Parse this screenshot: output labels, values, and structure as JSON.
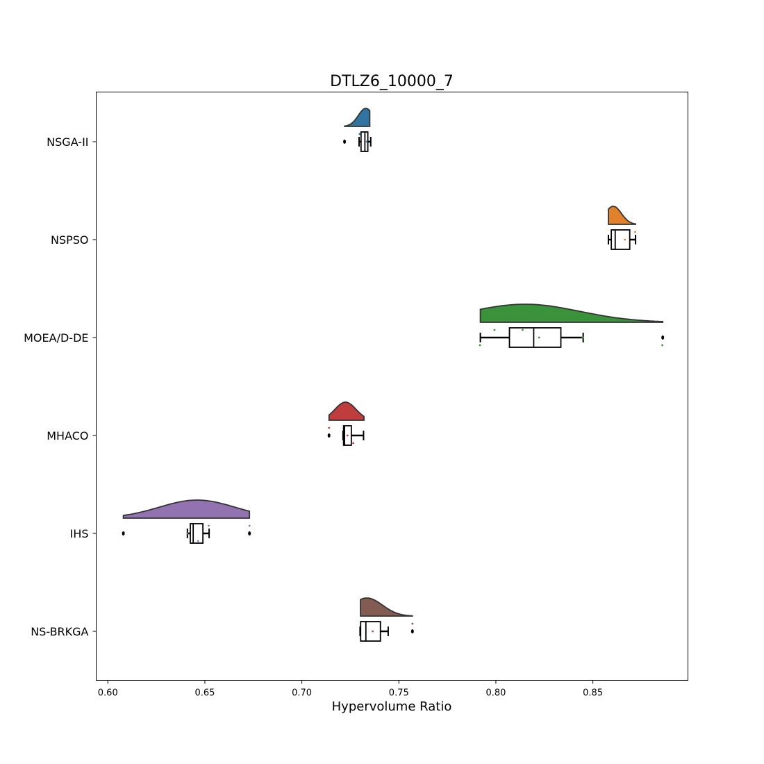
{
  "chart_data": {
    "type": "raincloud",
    "title": "DTLZ6_10000_7",
    "xlabel": "Hypervolume Ratio",
    "ylabel": "",
    "xlim": [
      0.594,
      0.899
    ],
    "xticks": [
      "0.60",
      "0.65",
      "0.70",
      "0.75",
      "0.80",
      "0.85"
    ],
    "grid": false,
    "series": [
      {
        "name": "NSGA-II",
        "color": "#3274a1",
        "violin": {
          "min": 0.722,
          "max": 0.735,
          "peak": 0.733
        },
        "box": {
          "whisker_low": 0.7295,
          "q1": 0.7305,
          "median": 0.7325,
          "q3": 0.734,
          "whisker_high": 0.7355
        },
        "outliers": [
          0.722
        ],
        "points": [
          0.7298,
          0.7335
        ]
      },
      {
        "name": "NSPSO",
        "color": "#e1812c",
        "violin": {
          "min": 0.858,
          "max": 0.872,
          "peak": 0.8605
        },
        "box": {
          "whisker_low": 0.858,
          "q1": 0.8595,
          "median": 0.8615,
          "q3": 0.869,
          "whisker_high": 0.872
        },
        "outliers": [],
        "points": [
          0.8718,
          0.8665
        ]
      },
      {
        "name": "MOEA/D-DE",
        "color": "#3a923a",
        "violin": {
          "min": 0.792,
          "max": 0.886,
          "peak": 0.815
        },
        "box": {
          "whisker_low": 0.792,
          "q1": 0.807,
          "median": 0.8195,
          "q3": 0.8335,
          "whisker_high": 0.845
        },
        "outliers": [
          0.886
        ],
        "points": [
          0.8138,
          0.8223,
          0.7918,
          0.7993,
          0.8448,
          0.8858
        ]
      },
      {
        "name": "MHACO",
        "color": "#c03d3e",
        "violin": {
          "min": 0.714,
          "max": 0.732,
          "peak": 0.7225
        },
        "box": {
          "whisker_low": 0.7212,
          "q1": 0.7215,
          "median": 0.722,
          "q3": 0.7255,
          "whisker_high": 0.7318
        },
        "outliers": [
          0.714
        ],
        "points": [
          0.714,
          0.7235,
          0.7265
        ]
      },
      {
        "name": "IHS",
        "color": "#9372b2",
        "violin": {
          "min": 0.608,
          "max": 0.673,
          "peak": 0.646
        },
        "box": {
          "whisker_low": 0.641,
          "q1": 0.6425,
          "median": 0.644,
          "q3": 0.649,
          "whisker_high": 0.6522
        },
        "outliers": [
          0.608,
          0.673
        ],
        "points": [
          0.673,
          0.641,
          0.6465,
          0.652
        ]
      },
      {
        "name": "NS-BRKGA",
        "color": "#845b53",
        "violin": {
          "min": 0.7302,
          "max": 0.757,
          "peak": 0.7335
        },
        "box": {
          "whisker_low": 0.73,
          "q1": 0.7303,
          "median": 0.733,
          "q3": 0.7405,
          "whisker_high": 0.7445
        },
        "outliers": [
          0.757
        ],
        "points": [
          0.757,
          0.7365
        ]
      }
    ]
  }
}
